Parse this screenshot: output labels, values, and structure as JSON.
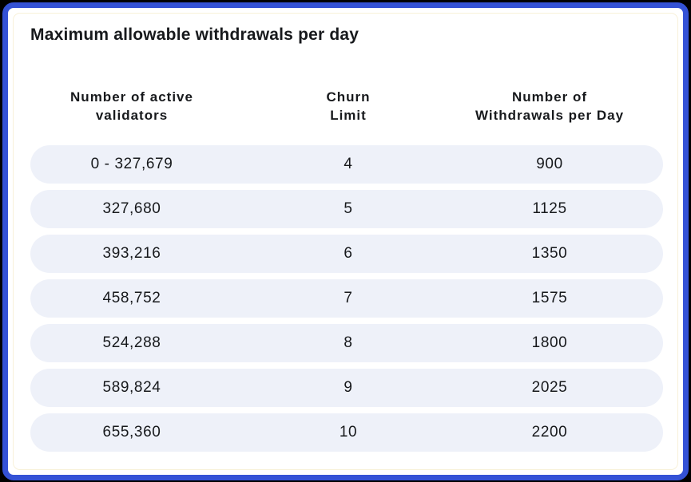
{
  "card": {
    "title": "Maximum allowable withdrawals per day"
  },
  "table": {
    "headers": [
      {
        "line1": "Number of active",
        "line2": "validators"
      },
      {
        "line1": "Churn",
        "line2": "Limit"
      },
      {
        "line1": "Number of",
        "line2": "Withdrawals per Day"
      }
    ],
    "rows": [
      {
        "validators": "0 - 327,679",
        "churn_limit": "4",
        "withdrawals": "900"
      },
      {
        "validators": "327,680",
        "churn_limit": "5",
        "withdrawals": "1125"
      },
      {
        "validators": "393,216",
        "churn_limit": "6",
        "withdrawals": "1350"
      },
      {
        "validators": "458,752",
        "churn_limit": "7",
        "withdrawals": "1575"
      },
      {
        "validators": "524,288",
        "churn_limit": "8",
        "withdrawals": "1800"
      },
      {
        "validators": "589,824",
        "churn_limit": "9",
        "withdrawals": "2025"
      },
      {
        "validators": "655,360",
        "churn_limit": "10",
        "withdrawals": "2200"
      }
    ]
  },
  "chart_data": {
    "type": "table",
    "title": "Maximum allowable withdrawals per day",
    "columns": [
      "Number of active validators",
      "Churn Limit",
      "Number of Withdrawals per Day"
    ],
    "rows": [
      [
        "0 - 327,679",
        4,
        900
      ],
      [
        "327,680",
        5,
        1125
      ],
      [
        "393,216",
        6,
        1350
      ],
      [
        "458,752",
        7,
        1575
      ],
      [
        "524,288",
        8,
        1800
      ],
      [
        "589,824",
        9,
        2025
      ],
      [
        "655,360",
        10,
        2200
      ]
    ]
  },
  "colors": {
    "background": "#000000",
    "border_blue": "#3452d6",
    "card_bg": "#ffffff",
    "row_bg": "#eef1f9",
    "text": "#17191c"
  }
}
